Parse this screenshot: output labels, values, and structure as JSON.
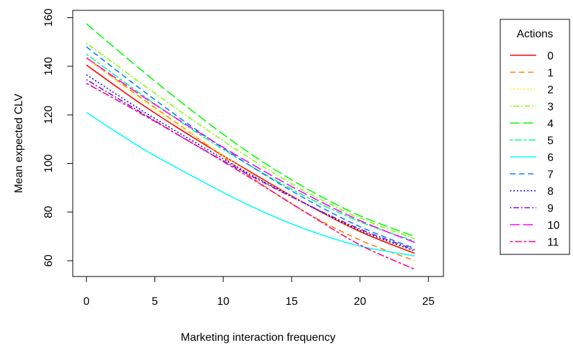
{
  "chart_data": {
    "type": "line",
    "title": "",
    "xlabel": "Marketing interaction frequency",
    "ylabel": "Mean expected CLV",
    "xlim": [
      0,
      25
    ],
    "ylim": [
      60,
      160
    ],
    "xticks": [
      0,
      5,
      10,
      15,
      20,
      25
    ],
    "yticks": [
      60,
      80,
      100,
      120,
      140,
      160
    ],
    "grid": false,
    "legend": {
      "title": "Actions",
      "placement": "right"
    },
    "x": [
      0,
      4,
      8,
      12,
      16,
      20,
      24
    ],
    "series": [
      {
        "name": "0",
        "color": "#ff0000",
        "dash": "solid",
        "values": [
          140.5,
          124.5,
          110.0,
          96.5,
          83.5,
          72.0,
          63.0
        ]
      },
      {
        "name": "1",
        "color": "#ff8000",
        "dash": "dashed",
        "values": [
          143.5,
          127.0,
          111.0,
          94.5,
          80.0,
          68.5,
          60.0
        ]
      },
      {
        "name": "2",
        "color": "#ffff00",
        "dash": "dotted",
        "values": [
          143.0,
          126.5,
          111.0,
          96.0,
          83.5,
          72.5,
          64.0
        ]
      },
      {
        "name": "3",
        "color": "#80ff00",
        "dash": "dotdash",
        "values": [
          149.5,
          133.0,
          117.0,
          102.0,
          88.5,
          77.5,
          69.0
        ]
      },
      {
        "name": "4",
        "color": "#00ff00",
        "dash": "longdash",
        "values": [
          157.5,
          138.5,
          120.5,
          104.0,
          90.0,
          78.5,
          70.0
        ]
      },
      {
        "name": "5",
        "color": "#00ff80",
        "dash": "twodash",
        "values": [
          145.0,
          128.5,
          113.0,
          99.0,
          86.5,
          76.0,
          68.0
        ]
      },
      {
        "name": "6",
        "color": "#00ffff",
        "dash": "solid",
        "values": [
          121.0,
          106.5,
          94.0,
          82.5,
          73.0,
          66.0,
          62.0
        ]
      },
      {
        "name": "7",
        "color": "#0080ff",
        "dash": "dashed",
        "values": [
          148.0,
          130.5,
          114.0,
          99.0,
          85.5,
          74.0,
          65.0
        ]
      },
      {
        "name": "8",
        "color": "#0000ff",
        "dash": "dotted",
        "values": [
          136.5,
          122.0,
          108.5,
          95.5,
          83.5,
          72.5,
          64.0
        ]
      },
      {
        "name": "9",
        "color": "#8000ff",
        "dash": "dotdash",
        "values": [
          134.5,
          121.0,
          107.5,
          95.0,
          83.5,
          73.0,
          64.5
        ]
      },
      {
        "name": "10",
        "color": "#ff00ff",
        "dash": "longdash",
        "values": [
          143.5,
          128.0,
          113.5,
          100.0,
          87.5,
          76.5,
          67.5
        ]
      },
      {
        "name": "11",
        "color": "#ff0080",
        "dash": "twodash",
        "values": [
          133.0,
          120.5,
          107.5,
          94.0,
          80.0,
          66.5,
          56.5
        ]
      }
    ]
  }
}
